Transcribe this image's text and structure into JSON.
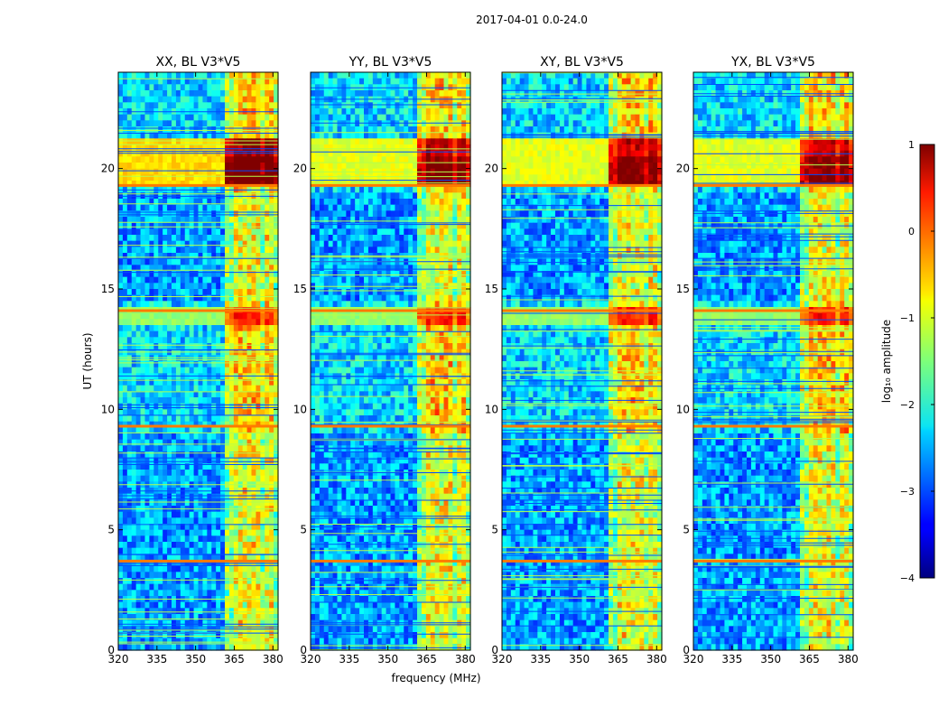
{
  "chart_data": {
    "type": "heatmap",
    "suptitle": "2017-04-01 0.0-24.0",
    "xlabel": "frequency (MHz)",
    "ylabel": "UT (hours)",
    "xlim": [
      320,
      382
    ],
    "ylim": [
      0,
      24
    ],
    "xticks": [
      320,
      335,
      350,
      365,
      380
    ],
    "yticks": [
      0,
      5,
      10,
      15,
      20
    ],
    "panels": [
      {
        "title": "XX, BL V3*V5"
      },
      {
        "title": "YY, BL V3*V5"
      },
      {
        "title": "XY, BL V3*V5"
      },
      {
        "title": "YX, BL V3*V5"
      }
    ],
    "colorbar": {
      "label": "log₁₀ amplitude",
      "range": [
        -4,
        1
      ],
      "ticks": [
        1,
        0,
        -1,
        -2,
        -3,
        -4
      ]
    },
    "regions": {
      "rfi_band_start_mhz": 362,
      "bright_time_band_ut": [
        19.3,
        21.2
      ],
      "strong_lines_ut": [
        3.7,
        9.3,
        14.1,
        19.3
      ],
      "bright_channel_mhz": [
        366,
        370,
        374,
        378
      ]
    }
  }
}
